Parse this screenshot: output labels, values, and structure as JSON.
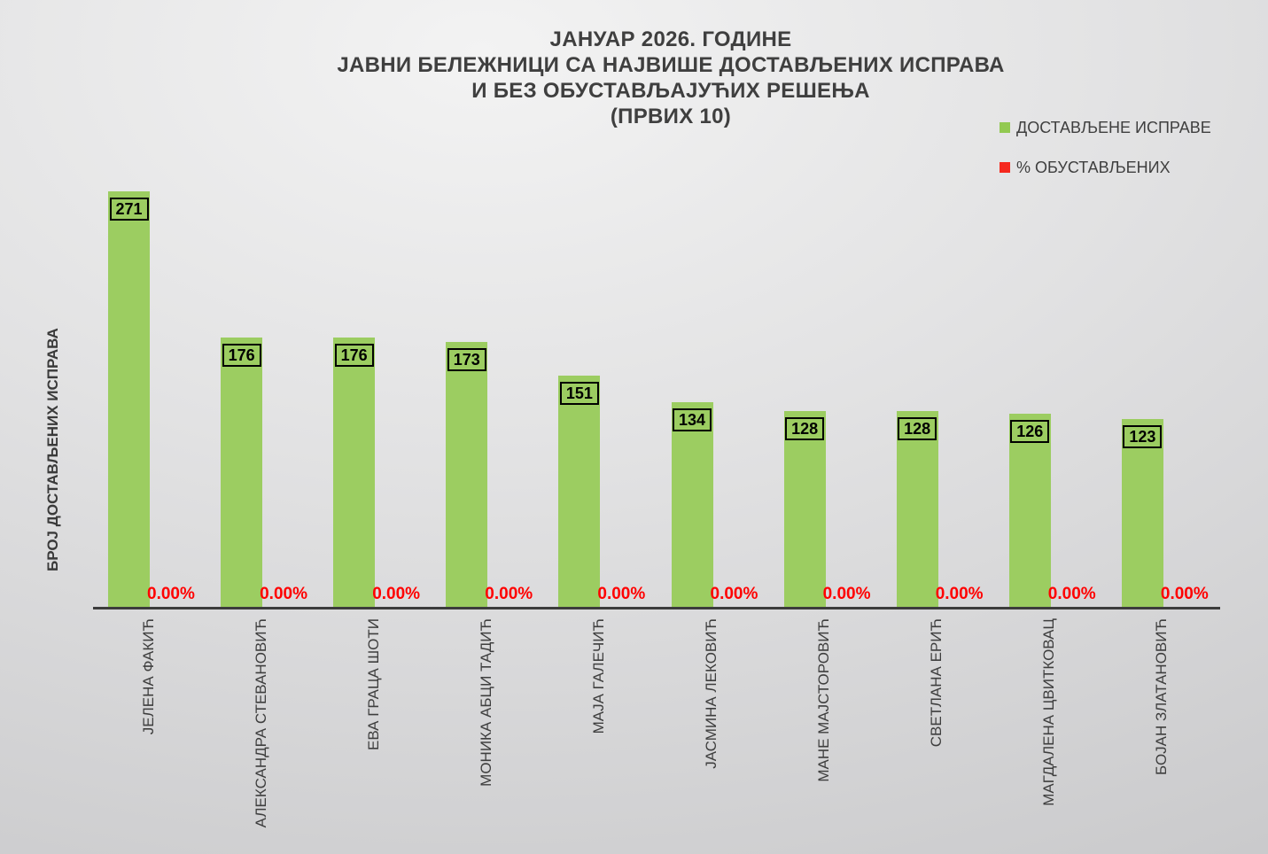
{
  "title": {
    "lines": [
      "ЈАНУАР 2026. ГОДИНЕ",
      "ЈАВНИ БЕЛЕЖНИЦИ СА НАЈВИШЕ ДОСТАВЉЕНИХ ИСПРАВА",
      "И БЕЗ ОБУСТАВЉАЈУЋИХ РЕШЕЊА",
      "(ПРВИХ 10)"
    ]
  },
  "legend": {
    "position": "right-top",
    "items": [
      {
        "label": "ДОСТАВЉЕНЕ ИСПРАВЕ",
        "color": "#92c951",
        "shape": "square"
      },
      {
        "label": "% ОБУСТАВЉЕНИХ",
        "color": "#f5281e",
        "shape": "square"
      }
    ]
  },
  "colors": {
    "bar_green": "#9ccd61",
    "pct_red": "#ff0000",
    "axis": "#3c3c3c",
    "text": "#3f3f3f"
  },
  "chart_data": {
    "type": "bar",
    "title": "ЈАНУАР 2026. ГОДИНЕ — ЈАВНИ БЕЛЕЖНИЦИ СА НАЈВИШЕ ДОСТАВЉЕНИХ ИСПРАВА И БЕЗ ОБУСТАВЉАЈУЋИХ РЕШЕЊА (ПРВИХ 10)",
    "xlabel": "",
    "ylabel": "БРОЈ ДОСТАВЉЕНИХ ИСПРАВА",
    "ylim": [
      0,
      280
    ],
    "grid": false,
    "legend_position": "right-top",
    "categories": [
      "ЈЕЛЕНА ФАКИЋ",
      "АЛЕКСАНДРА СТЕВАНОВИЋ",
      "ЕВА ГРАЦА ШОТИ",
      "МОНИКА АБЦИ ТАДИЋ",
      "МАЈА ГАЛЕЧИЋ",
      "ЈАСМИНА ЛЕКОВИЋ",
      "МАНЕ МАЈСТОРОВИЋ",
      "СВЕТЛАНА ЕРИЋ",
      "МАГДАЛЕНА ЦВИТКОВАЦ",
      "БОЈАН ЗЛАТАНОВИЋ"
    ],
    "series": [
      {
        "name": "ДОСТАВЉЕНЕ ИСПРАВЕ",
        "color": "#9ccd61",
        "values": [
          271,
          176,
          176,
          173,
          151,
          134,
          128,
          128,
          126,
          123
        ]
      },
      {
        "name": "% ОБУСТАВЉЕНИХ",
        "color": "#ff0000",
        "values": [
          0,
          0,
          0,
          0,
          0,
          0,
          0,
          0,
          0,
          0
        ],
        "labels": [
          "0.00%",
          "0.00%",
          "0.00%",
          "0.00%",
          "0.00%",
          "0.00%",
          "0.00%",
          "0.00%",
          "0.00%",
          "0.00%"
        ]
      }
    ]
  }
}
